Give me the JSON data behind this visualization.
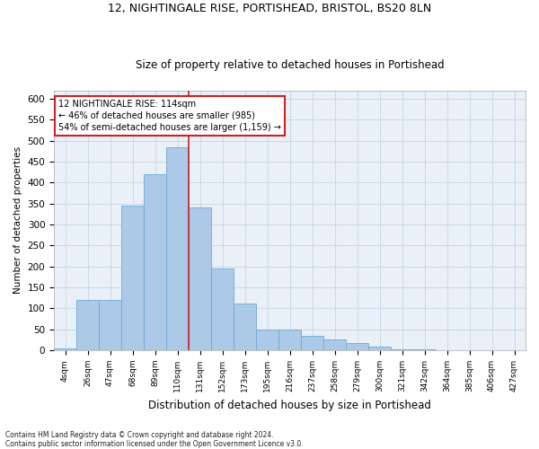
{
  "title1": "12, NIGHTINGALE RISE, PORTISHEAD, BRISTOL, BS20 8LN",
  "title2": "Size of property relative to detached houses in Portishead",
  "xlabel": "Distribution of detached houses by size in Portishead",
  "ylabel": "Number of detached properties",
  "footnote1": "Contains HM Land Registry data © Crown copyright and database right 2024.",
  "footnote2": "Contains public sector information licensed under the Open Government Licence v3.0.",
  "annotation_line1": "12 NIGHTINGALE RISE: 114sqm",
  "annotation_line2": "← 46% of detached houses are smaller (985)",
  "annotation_line3": "54% of semi-detached houses are larger (1,159) →",
  "bar_color": "#adc9e8",
  "bar_edge_color": "#6aaad4",
  "categories": [
    "4sqm",
    "26sqm",
    "47sqm",
    "68sqm",
    "89sqm",
    "110sqm",
    "131sqm",
    "152sqm",
    "173sqm",
    "195sqm",
    "216sqm",
    "237sqm",
    "258sqm",
    "279sqm",
    "300sqm",
    "321sqm",
    "342sqm",
    "364sqm",
    "385sqm",
    "406sqm",
    "427sqm"
  ],
  "values": [
    5,
    120,
    120,
    345,
    420,
    485,
    340,
    195,
    112,
    50,
    50,
    35,
    25,
    18,
    8,
    3,
    2,
    1,
    1,
    1,
    1
  ],
  "ylim": [
    0,
    620
  ],
  "yticks": [
    0,
    50,
    100,
    150,
    200,
    250,
    300,
    350,
    400,
    450,
    500,
    550,
    600
  ],
  "grid_color": "#c8d8e8",
  "bg_color": "#eaf0f8",
  "annotation_box_facecolor": "#ffffff",
  "annotation_box_edgecolor": "#cc2222",
  "red_line_color": "#cc2222",
  "red_line_bar_index": 5,
  "title1_fontsize": 9,
  "title2_fontsize": 8.5
}
